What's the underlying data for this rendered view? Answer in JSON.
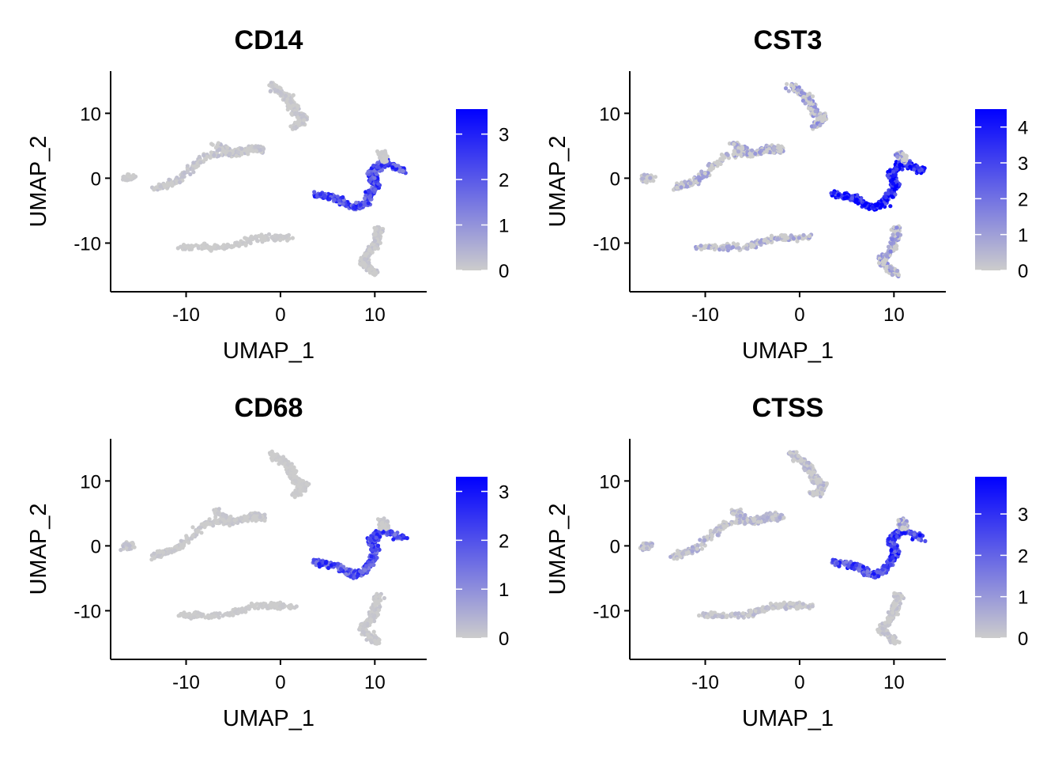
{
  "chart_data": [
    {
      "type": "scatter",
      "title": "CD14",
      "xlabel": "UMAP_1",
      "ylabel": "UMAP_2",
      "xlim": [
        -18,
        15.5
      ],
      "ylim": [
        -17.5,
        16.5
      ],
      "xticks": [
        -10,
        0,
        10
      ],
      "yticks": [
        -10,
        0,
        10
      ],
      "color_scale": {
        "low": "#cccccc",
        "high": "#0000ff",
        "max": 3.55,
        "ticks": [
          0,
          1,
          2,
          3
        ]
      },
      "expression": {
        "cluster_a": 0.15,
        "cluster_b": 0.2,
        "cluster_c": 0.05,
        "cluster_d": 0.05,
        "cluster_e": 2.2,
        "cluster_f": 0.15,
        "cluster_g": 0.05
      }
    },
    {
      "type": "scatter",
      "title": "CST3",
      "xlabel": "UMAP_1",
      "ylabel": "UMAP_2",
      "xlim": [
        -18,
        15.5
      ],
      "ylim": [
        -17.5,
        16.5
      ],
      "xticks": [
        -10,
        0,
        10
      ],
      "yticks": [
        -10,
        0,
        10
      ],
      "color_scale": {
        "low": "#cccccc",
        "high": "#0000ff",
        "max": 4.5,
        "ticks": [
          0,
          1,
          2,
          3,
          4
        ]
      },
      "expression": {
        "cluster_a": 1.1,
        "cluster_b": 0.9,
        "cluster_c": 0.7,
        "cluster_d": 0.8,
        "cluster_e": 4.0,
        "cluster_f": 1.2,
        "cluster_g": 1.4
      }
    },
    {
      "type": "scatter",
      "title": "CD68",
      "xlabel": "UMAP_1",
      "ylabel": "UMAP_2",
      "xlim": [
        -18,
        15.5
      ],
      "ylim": [
        -17.5,
        16.5
      ],
      "xticks": [
        -10,
        0,
        10
      ],
      "yticks": [
        -10,
        0,
        10
      ],
      "color_scale": {
        "low": "#cccccc",
        "high": "#0000ff",
        "max": 3.3,
        "ticks": [
          0,
          1,
          2,
          3
        ]
      },
      "expression": {
        "cluster_a": 0.05,
        "cluster_b": 0.1,
        "cluster_c": 0.2,
        "cluster_d": 0.05,
        "cluster_e": 2.0,
        "cluster_f": 0.1,
        "cluster_g": 0.1
      }
    },
    {
      "type": "scatter",
      "title": "CTSS",
      "xlabel": "UMAP_1",
      "ylabel": "UMAP_2",
      "xlim": [
        -18,
        15.5
      ],
      "ylim": [
        -17.5,
        16.5
      ],
      "xticks": [
        -10,
        0,
        10
      ],
      "yticks": [
        -10,
        0,
        10
      ],
      "color_scale": {
        "low": "#cccccc",
        "high": "#0000ff",
        "max": 3.9,
        "ticks": [
          0,
          1,
          2,
          3
        ]
      },
      "expression": {
        "cluster_a": 0.4,
        "cluster_b": 0.5,
        "cluster_c": 0.5,
        "cluster_d": 0.3,
        "cluster_e": 2.6,
        "cluster_f": 0.2,
        "cluster_g": 0.9
      }
    }
  ],
  "clusters": [
    {
      "name": "cluster_a",
      "points": [
        [
          -1,
          14.3
        ],
        [
          0.8,
          12.5
        ],
        [
          1.6,
          10.2
        ],
        [
          2.6,
          9.3
        ],
        [
          1.5,
          7.9
        ]
      ]
    },
    {
      "name": "cluster_b",
      "points": [
        [
          -7.0,
          5.4
        ],
        [
          -5.2,
          3.6
        ],
        [
          -3.0,
          4.6
        ],
        [
          -1.9,
          4.4
        ],
        [
          -7.8,
          3.6
        ],
        [
          -11.0,
          -0.5
        ],
        [
          -13.4,
          -1.6
        ]
      ]
    },
    {
      "name": "cluster_c",
      "points": [
        [
          -16.5,
          -0.2
        ],
        [
          -15.8,
          0.2
        ]
      ]
    },
    {
      "name": "cluster_d",
      "points": [
        [
          -10.7,
          -10.6
        ],
        [
          -6.0,
          -10.7
        ],
        [
          -2.5,
          -9.2
        ],
        [
          1.3,
          -9.2
        ]
      ]
    },
    {
      "name": "cluster_e",
      "points": [
        [
          3.6,
          -2.5
        ],
        [
          5.8,
          -3.0
        ],
        [
          7.8,
          -4.6
        ],
        [
          9.0,
          -3.8
        ],
        [
          10.2,
          -1.0
        ],
        [
          9.6,
          0.8
        ],
        [
          10.9,
          2.4
        ],
        [
          13.1,
          1.1
        ]
      ]
    },
    {
      "name": "cluster_f",
      "points": [
        [
          10.4,
          -7.5
        ],
        [
          10.0,
          -10.4
        ],
        [
          8.6,
          -12.8
        ],
        [
          10.2,
          -14.8
        ]
      ]
    },
    {
      "name": "cluster_g",
      "points": [
        [
          11.0,
          2.8
        ],
        [
          10.7,
          3.9
        ]
      ]
    }
  ]
}
